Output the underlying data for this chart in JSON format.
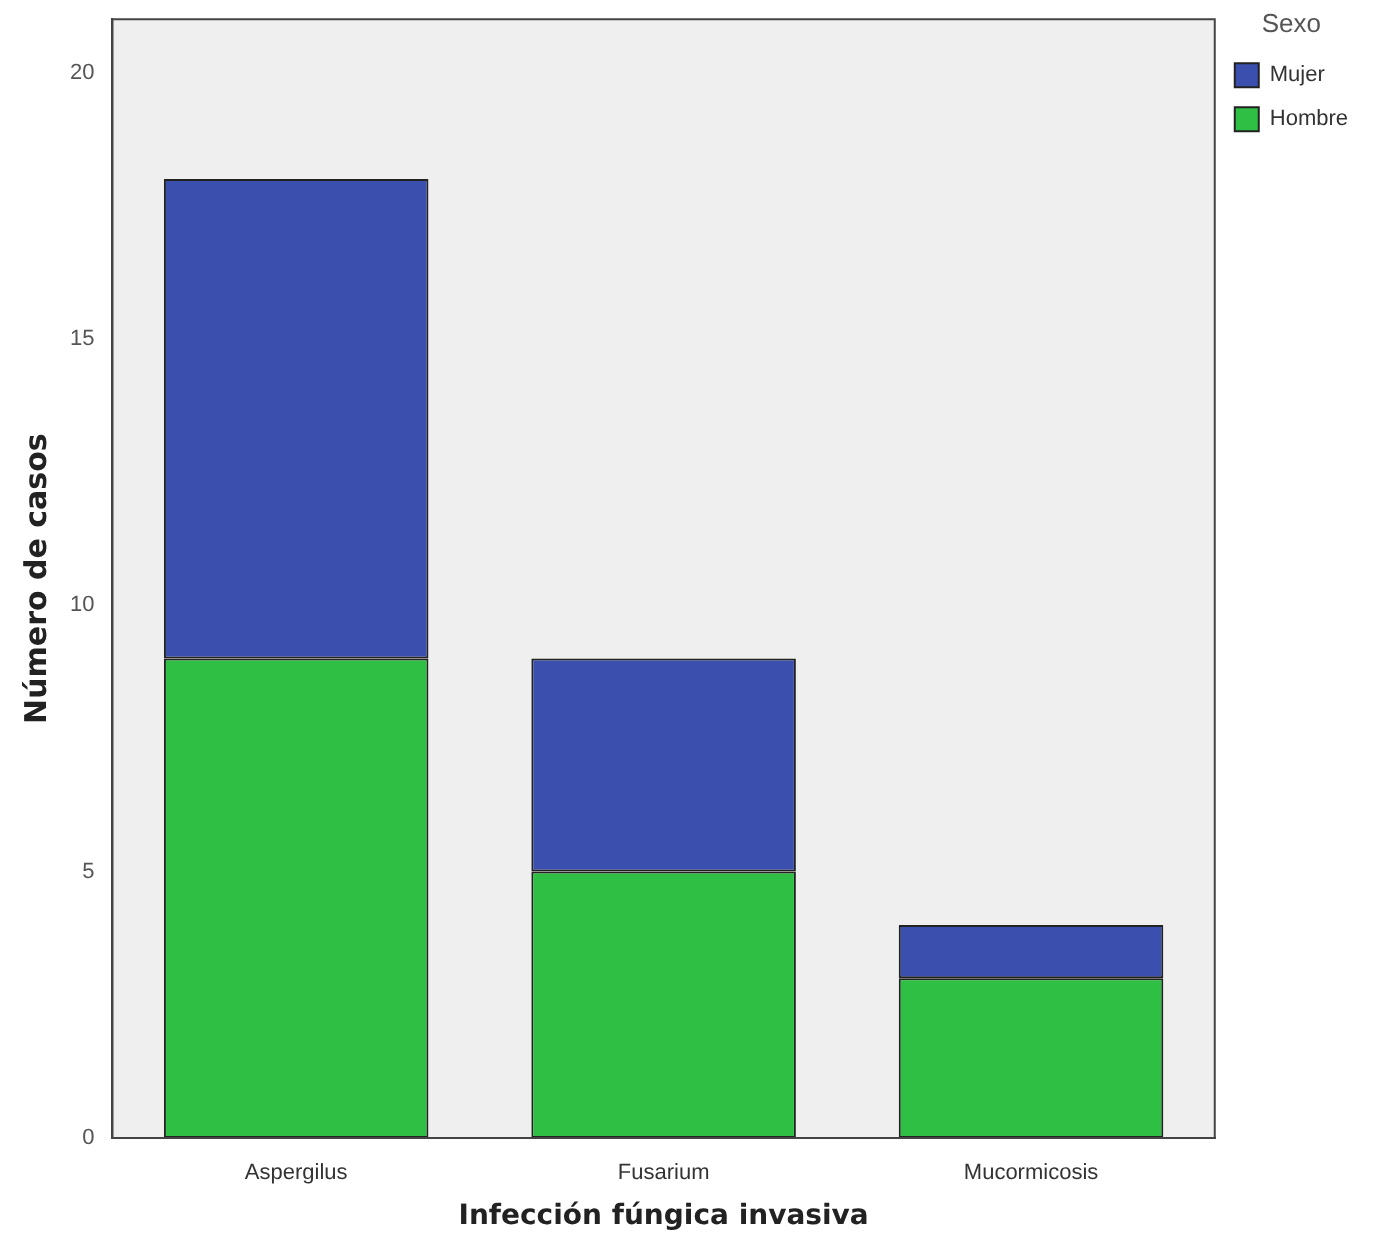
{
  "chart_data": {
    "type": "bar",
    "xlabel": "Infección fúngica invasiva",
    "ylabel": "Número de casos",
    "legend_title": "Sexo",
    "categories": [
      "Aspergilus",
      "Fusarium",
      "Mucormicosis"
    ],
    "stacked": true,
    "series": [
      {
        "name": "Hombre",
        "color": "#2fbf45",
        "values": [
          9,
          5,
          3
        ]
      },
      {
        "name": "Mujer",
        "color": "#3b50ae",
        "values": [
          9,
          4,
          1
        ]
      }
    ],
    "ylim": [
      0,
      21
    ],
    "yticks": [
      0,
      5,
      10,
      15,
      20
    ],
    "grid": false,
    "legend": "top right"
  }
}
